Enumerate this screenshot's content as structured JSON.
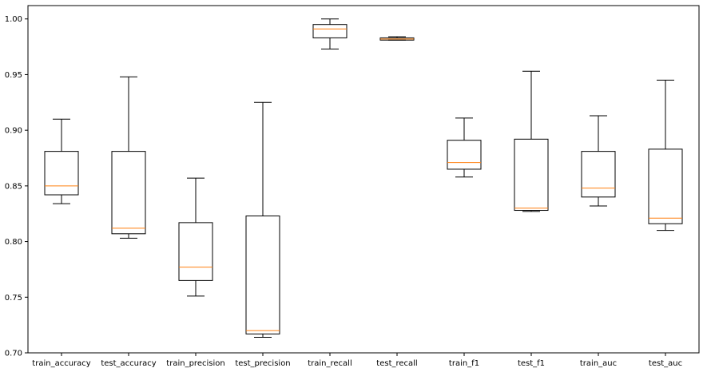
{
  "chart_data": {
    "type": "boxplot",
    "categories": [
      "train_accuracy",
      "test_accuracy",
      "train_precision",
      "test_precision",
      "train_recall",
      "test_recall",
      "train_f1",
      "test_f1",
      "train_auc",
      "test_auc"
    ],
    "boxes": [
      {
        "whisker_low": 0.834,
        "q1": 0.842,
        "median": 0.85,
        "q3": 0.881,
        "whisker_high": 0.91
      },
      {
        "whisker_low": 0.803,
        "q1": 0.807,
        "median": 0.812,
        "q3": 0.881,
        "whisker_high": 0.948
      },
      {
        "whisker_low": 0.751,
        "q1": 0.765,
        "median": 0.777,
        "q3": 0.817,
        "whisker_high": 0.857
      },
      {
        "whisker_low": 0.714,
        "q1": 0.717,
        "median": 0.72,
        "q3": 0.823,
        "whisker_high": 0.925
      },
      {
        "whisker_low": 0.973,
        "q1": 0.983,
        "median": 0.991,
        "q3": 0.995,
        "whisker_high": 1.0
      },
      {
        "whisker_low": 0.981,
        "q1": 0.981,
        "median": 0.982,
        "q3": 0.983,
        "whisker_high": 0.984
      },
      {
        "whisker_low": 0.858,
        "q1": 0.865,
        "median": 0.871,
        "q3": 0.891,
        "whisker_high": 0.911
      },
      {
        "whisker_low": 0.827,
        "q1": 0.828,
        "median": 0.83,
        "q3": 0.892,
        "whisker_high": 0.953
      },
      {
        "whisker_low": 0.832,
        "q1": 0.84,
        "median": 0.848,
        "q3": 0.881,
        "whisker_high": 0.913
      },
      {
        "whisker_low": 0.81,
        "q1": 0.816,
        "median": 0.821,
        "q3": 0.883,
        "whisker_high": 0.945
      }
    ],
    "yticks": [
      "0.70",
      "0.75",
      "0.80",
      "0.85",
      "0.90",
      "0.95",
      "1.00"
    ],
    "ylim": [
      0.7,
      1.012
    ],
    "title": "",
    "xlabel": "",
    "ylabel": "",
    "grid": false,
    "colors": {
      "box": "#000000",
      "median": "#ff7f0e",
      "background": "#ffffff"
    }
  }
}
